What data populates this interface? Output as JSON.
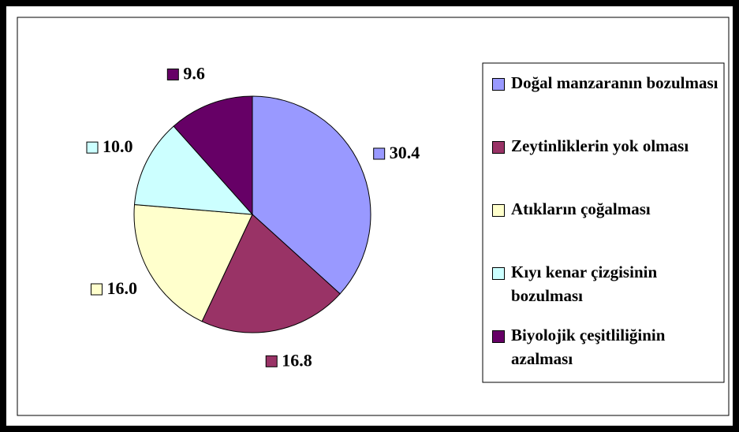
{
  "chart_data": {
    "type": "pie",
    "categories": [
      "Doğal manzaranın bozulması",
      "Zeytinliklerin yok olması",
      "Atıkların çoğalması",
      "Kıyı kenar çizgisinin bozulması",
      "Biyolojik çeşitliliğinin azalması"
    ],
    "values": [
      30.4,
      16.8,
      16.0,
      10.0,
      9.6
    ],
    "value_labels": [
      "30.4",
      "16.8",
      "16.0",
      "10.0",
      "9.6"
    ],
    "colors": [
      "#9999ff",
      "#993366",
      "#ffffcc",
      "#ccffff",
      "#660066"
    ],
    "legend": "right"
  }
}
